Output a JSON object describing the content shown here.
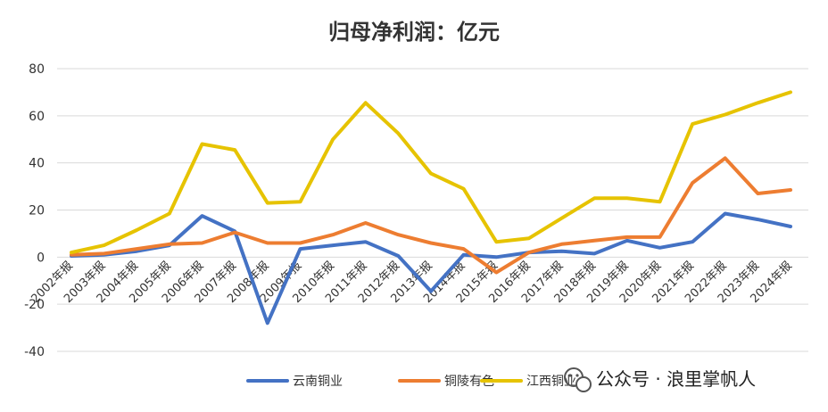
{
  "chart_data": {
    "type": "line",
    "title": "归母净利润：亿元",
    "categories": [
      "2002年报",
      "2003年报",
      "2004年报",
      "2005年报",
      "2006年报",
      "2007年报",
      "2008年报",
      "2009年报",
      "2010年报",
      "2011年报",
      "2012年报",
      "2013年报",
      "2014年报",
      "2015年报",
      "2016年报",
      "2017年报",
      "2018年报",
      "2019年报",
      "2020年报",
      "2021年报",
      "2022年报",
      "2023年报",
      "2024年报"
    ],
    "yticks": [
      "80",
      "60",
      "40",
      "20",
      "0",
      "-20",
      "-40"
    ],
    "ylim": [
      -40,
      80
    ],
    "grid": true,
    "legend_position": "bottom",
    "series": [
      {
        "name": "云南铜业",
        "color": "#4472C4",
        "values": [
          0.5,
          1.0,
          2.5,
          5.0,
          17.5,
          11.0,
          -28.0,
          3.5,
          5.0,
          6.5,
          0.5,
          -14.5,
          1.0,
          0.0,
          2.0,
          2.5,
          1.5,
          7.0,
          4.0,
          6.5,
          18.5,
          16.0,
          13.0
        ]
      },
      {
        "name": "铜陵有色",
        "color": "#ED7D31",
        "values": [
          1.0,
          1.5,
          3.5,
          5.5,
          6.0,
          10.5,
          6.0,
          6.0,
          9.5,
          14.5,
          9.5,
          6.0,
          3.5,
          -6.5,
          2.0,
          5.5,
          7.0,
          8.5,
          8.5,
          31.5,
          42.0,
          27.0,
          28.5
        ]
      },
      {
        "name": "江西铜业",
        "color": "#E6C300",
        "values": [
          2.0,
          5.0,
          11.5,
          18.5,
          48.0,
          45.5,
          23.0,
          23.5,
          50.0,
          65.5,
          52.5,
          35.5,
          29.0,
          6.5,
          8.0,
          16.5,
          25.0,
          25.0,
          23.5,
          56.5,
          60.5,
          65.5,
          70.0
        ]
      }
    ]
  },
  "watermark": {
    "icon": "wechat-icon",
    "text": "公众号 · 浪里掌帆人"
  }
}
